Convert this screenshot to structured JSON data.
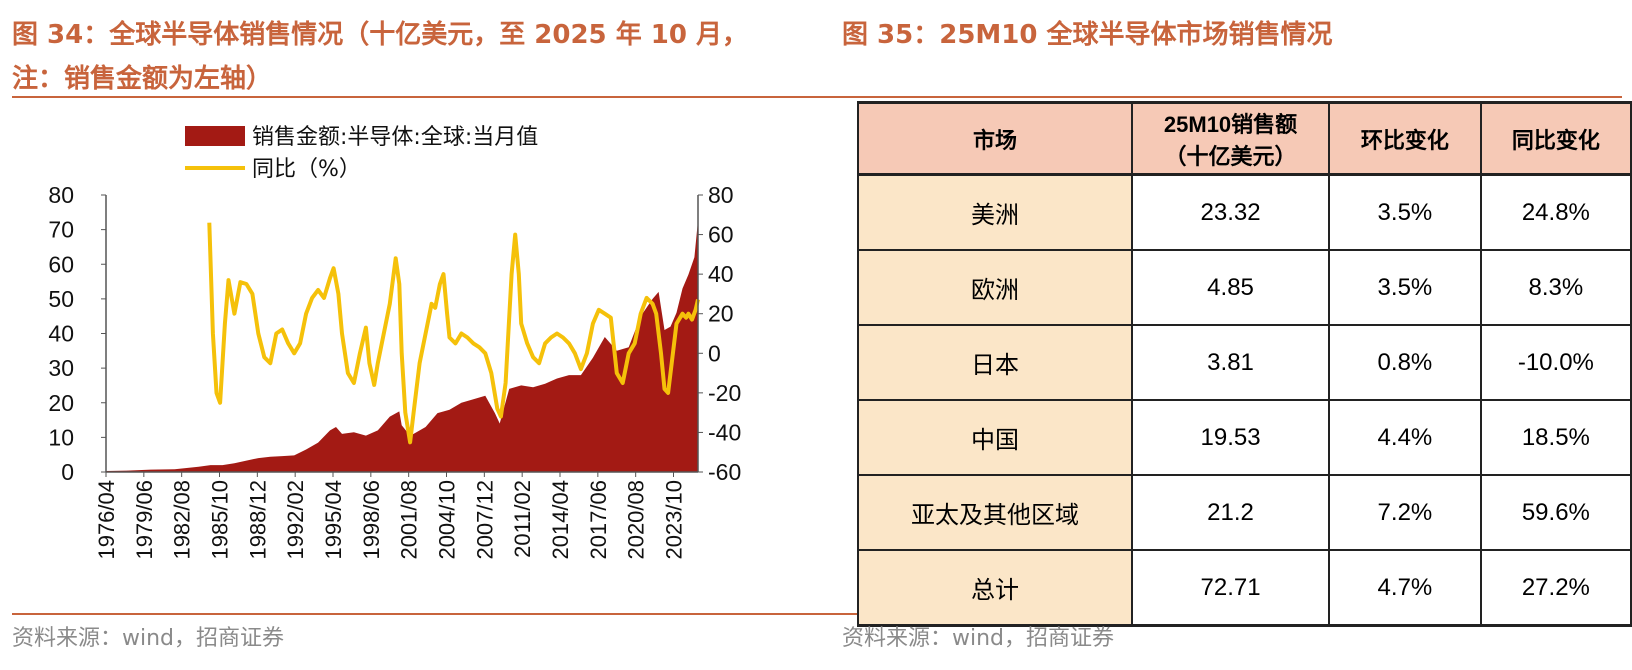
{
  "titles": {
    "left_line1": "图 34：全球半导体销售情况（十亿美元，至 2025 年 10 月，",
    "left_line2": "注：销售金额为左轴）",
    "right": "图 35：25M10 全球半导体市场销售情况"
  },
  "sources": {
    "left": "资料来源：wind，招商证券",
    "right": "资料来源：wind，招商证券"
  },
  "colors": {
    "title": "#c8643c",
    "area": "#a31a14",
    "line": "#f5c10a",
    "table_header": "#f6c9b6",
    "table_name_col": "#fbe6c8"
  },
  "chart_data": {
    "type": "area",
    "legend": [
      "销售金额:半导体:全球:当月值",
      "同比（%）"
    ],
    "legend_position": "top",
    "x_tick_labels": [
      "1976/04",
      "1979/06",
      "1982/08",
      "1985/10",
      "1988/12",
      "1992/02",
      "1995/04",
      "1998/06",
      "2001/08",
      "2004/10",
      "2007/12",
      "2011/02",
      "2014/04",
      "2017/06",
      "2020/08",
      "2023/10"
    ],
    "x_range": [
      1976.25,
      2025.8
    ],
    "left_axis": {
      "ylim": [
        0,
        80
      ],
      "ticks": [
        0,
        10,
        20,
        30,
        40,
        50,
        60,
        70,
        80
      ]
    },
    "right_axis": {
      "ylim": [
        -60,
        80
      ],
      "ticks": [
        -60,
        -40,
        -20,
        0,
        20,
        40,
        60,
        80
      ]
    },
    "series": [
      {
        "name": "销售金额:半导体:全球:当月值",
        "axis": "left",
        "type": "area",
        "points": [
          [
            1976.25,
            0.3
          ],
          [
            1978,
            0.4
          ],
          [
            1980,
            0.7
          ],
          [
            1982,
            0.8
          ],
          [
            1984,
            1.5
          ],
          [
            1985.0,
            2.0
          ],
          [
            1986,
            2.0
          ],
          [
            1987,
            2.5
          ],
          [
            1988,
            3.3
          ],
          [
            1989,
            4.0
          ],
          [
            1990,
            4.4
          ],
          [
            1991,
            4.6
          ],
          [
            1992,
            4.8
          ],
          [
            1993,
            6.5
          ],
          [
            1994,
            8.5
          ],
          [
            1995,
            12.0
          ],
          [
            1995.5,
            13.0
          ],
          [
            1996,
            11.0
          ],
          [
            1997,
            11.5
          ],
          [
            1998,
            10.5
          ],
          [
            1999,
            12.0
          ],
          [
            2000,
            16.0
          ],
          [
            2000.8,
            17.5
          ],
          [
            2001,
            13.5
          ],
          [
            2001.7,
            10.5
          ],
          [
            2002,
            11.0
          ],
          [
            2003,
            13.0
          ],
          [
            2004,
            17.0
          ],
          [
            2005,
            18.0
          ],
          [
            2006,
            20.0
          ],
          [
            2007,
            21.0
          ],
          [
            2008,
            22.0
          ],
          [
            2008.8,
            17.0
          ],
          [
            2009.2,
            14.0
          ],
          [
            2010,
            24.0
          ],
          [
            2011,
            25.0
          ],
          [
            2012,
            24.5
          ],
          [
            2013,
            25.5
          ],
          [
            2014,
            27.0
          ],
          [
            2015,
            28.0
          ],
          [
            2016,
            28.0
          ],
          [
            2017,
            33.0
          ],
          [
            2018,
            39.0
          ],
          [
            2019,
            35.0
          ],
          [
            2020,
            36.0
          ],
          [
            2021,
            45.0
          ],
          [
            2022,
            50.0
          ],
          [
            2022.5,
            52.0
          ],
          [
            2023.0,
            41.0
          ],
          [
            2023.5,
            42.0
          ],
          [
            2024,
            46.0
          ],
          [
            2024.5,
            53.0
          ],
          [
            2025,
            57.0
          ],
          [
            2025.5,
            62.0
          ],
          [
            2025.8,
            72.71
          ]
        ]
      },
      {
        "name": "同比（%）",
        "axis": "right",
        "type": "line",
        "points": [
          [
            1984.9,
            66
          ],
          [
            1985.2,
            10
          ],
          [
            1985.5,
            -20
          ],
          [
            1985.8,
            -25
          ],
          [
            1986.2,
            15
          ],
          [
            1986.5,
            37
          ],
          [
            1987,
            20
          ],
          [
            1987.5,
            36
          ],
          [
            1988,
            35
          ],
          [
            1988.5,
            30
          ],
          [
            1989,
            10
          ],
          [
            1989.5,
            -2
          ],
          [
            1990,
            -5
          ],
          [
            1990.5,
            10
          ],
          [
            1991,
            12
          ],
          [
            1991.5,
            5
          ],
          [
            1992,
            0
          ],
          [
            1992.5,
            5
          ],
          [
            1993,
            20
          ],
          [
            1993.5,
            28
          ],
          [
            1994,
            32
          ],
          [
            1994.5,
            28
          ],
          [
            1995,
            38
          ],
          [
            1995.3,
            43
          ],
          [
            1995.7,
            30
          ],
          [
            1996,
            10
          ],
          [
            1996.5,
            -10
          ],
          [
            1997,
            -15
          ],
          [
            1997.5,
            0
          ],
          [
            1998,
            13
          ],
          [
            1998.3,
            -5
          ],
          [
            1998.7,
            -16
          ],
          [
            1999,
            -5
          ],
          [
            1999.5,
            10
          ],
          [
            2000,
            25
          ],
          [
            2000.5,
            48
          ],
          [
            2000.8,
            35
          ],
          [
            2001,
            0
          ],
          [
            2001.3,
            -30
          ],
          [
            2001.7,
            -45
          ],
          [
            2002,
            -30
          ],
          [
            2002.5,
            -5
          ],
          [
            2003,
            10
          ],
          [
            2003.5,
            25
          ],
          [
            2003.8,
            23
          ],
          [
            2004.2,
            35
          ],
          [
            2004.5,
            40
          ],
          [
            2004.8,
            20
          ],
          [
            2005,
            8
          ],
          [
            2005.5,
            5
          ],
          [
            2006,
            10
          ],
          [
            2006.5,
            8
          ],
          [
            2007,
            5
          ],
          [
            2007.5,
            3
          ],
          [
            2008,
            0
          ],
          [
            2008.5,
            -10
          ],
          [
            2009,
            -28
          ],
          [
            2009.3,
            -32
          ],
          [
            2009.7,
            -15
          ],
          [
            2010.2,
            40
          ],
          [
            2010.5,
            60
          ],
          [
            2010.8,
            40
          ],
          [
            2011,
            15
          ],
          [
            2011.5,
            5
          ],
          [
            2012,
            -2
          ],
          [
            2012.5,
            -5
          ],
          [
            2013,
            5
          ],
          [
            2013.5,
            8
          ],
          [
            2014,
            10
          ],
          [
            2014.5,
            8
          ],
          [
            2015,
            5
          ],
          [
            2015.5,
            0
          ],
          [
            2016,
            -8
          ],
          [
            2016.5,
            0
          ],
          [
            2017,
            15
          ],
          [
            2017.5,
            22
          ],
          [
            2018,
            20
          ],
          [
            2018.5,
            18
          ],
          [
            2019,
            -10
          ],
          [
            2019.5,
            -15
          ],
          [
            2020,
            0
          ],
          [
            2020.5,
            5
          ],
          [
            2021,
            20
          ],
          [
            2021.5,
            28
          ],
          [
            2022,
            25
          ],
          [
            2022.3,
            20
          ],
          [
            2022.7,
            0
          ],
          [
            2023,
            -18
          ],
          [
            2023.3,
            -20
          ],
          [
            2023.6,
            -5
          ],
          [
            2024,
            15
          ],
          [
            2024.5,
            20
          ],
          [
            2024.8,
            18
          ],
          [
            2025,
            20
          ],
          [
            2025.3,
            17
          ],
          [
            2025.6,
            22
          ],
          [
            2025.8,
            27.2
          ]
        ]
      }
    ]
  },
  "table": {
    "headers": [
      "市场",
      "25M10销售额\n（十亿美元）",
      "环比变化",
      "同比变化"
    ],
    "header_line1": "25M10销售额",
    "header_line2": "（十亿美元）",
    "rows": [
      {
        "market": "美洲",
        "sales": "23.32",
        "mom": "3.5%",
        "yoy": "24.8%"
      },
      {
        "market": "欧洲",
        "sales": "4.85",
        "mom": "3.5%",
        "yoy": "8.3%"
      },
      {
        "market": "日本",
        "sales": "3.81",
        "mom": "0.8%",
        "yoy": "-10.0%"
      },
      {
        "market": "中国",
        "sales": "19.53",
        "mom": "4.4%",
        "yoy": "18.5%"
      },
      {
        "market": "亚太及其他区域",
        "sales": "21.2",
        "mom": "7.2%",
        "yoy": "59.6%"
      },
      {
        "market": "总计",
        "sales": "72.71",
        "mom": "4.7%",
        "yoy": "27.2%"
      }
    ]
  }
}
